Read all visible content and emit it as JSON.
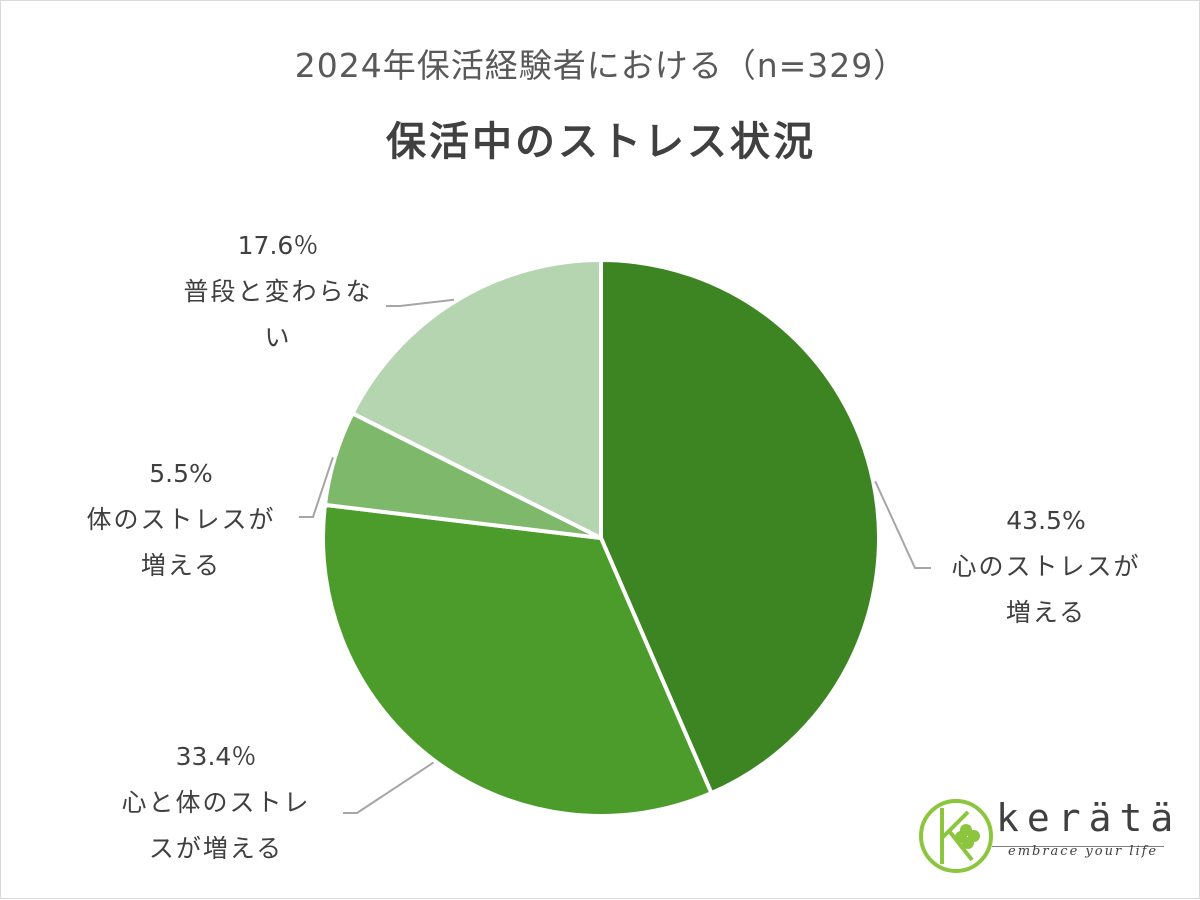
{
  "header": {
    "subtitle": "2024年保活経験者における（n=329）",
    "title": "保活中のストレス状況"
  },
  "chart_data": {
    "type": "pie",
    "title": "保活中のストレス状況",
    "subtitle": "2024年保活経験者における（n=329）",
    "slices": [
      {
        "label": "心のストレスが増える",
        "value": 43.5,
        "display": "43.5%",
        "lines": [
          "心のストレスが",
          "増える"
        ],
        "color": "#3d8423"
      },
      {
        "label": "心と体のストレスが増える",
        "value": 33.4,
        "display": "33.4％",
        "lines": [
          "心と体のストレ",
          "スが増える"
        ],
        "color": "#4b9c2b"
      },
      {
        "label": "体のストレスが増える",
        "value": 5.5,
        "display": "5.5%",
        "lines": [
          "体のストレスが",
          "増える"
        ],
        "color": "#7eb86b"
      },
      {
        "label": "普段と変わらない",
        "value": 17.6,
        "display": "17.6％",
        "lines": [
          "普段と変わらな",
          "い"
        ],
        "color": "#b5d4b0"
      }
    ],
    "start_angle": "12 o'clock",
    "direction": "clockwise",
    "legend": "none",
    "slice_border_color": "#ffffff",
    "leader_line_color": "#a6a6a6"
  },
  "logo": {
    "word": "kerätä",
    "tagline": "embrace your life",
    "colors": {
      "green": "#8cc63f",
      "dark": "#404040"
    }
  }
}
